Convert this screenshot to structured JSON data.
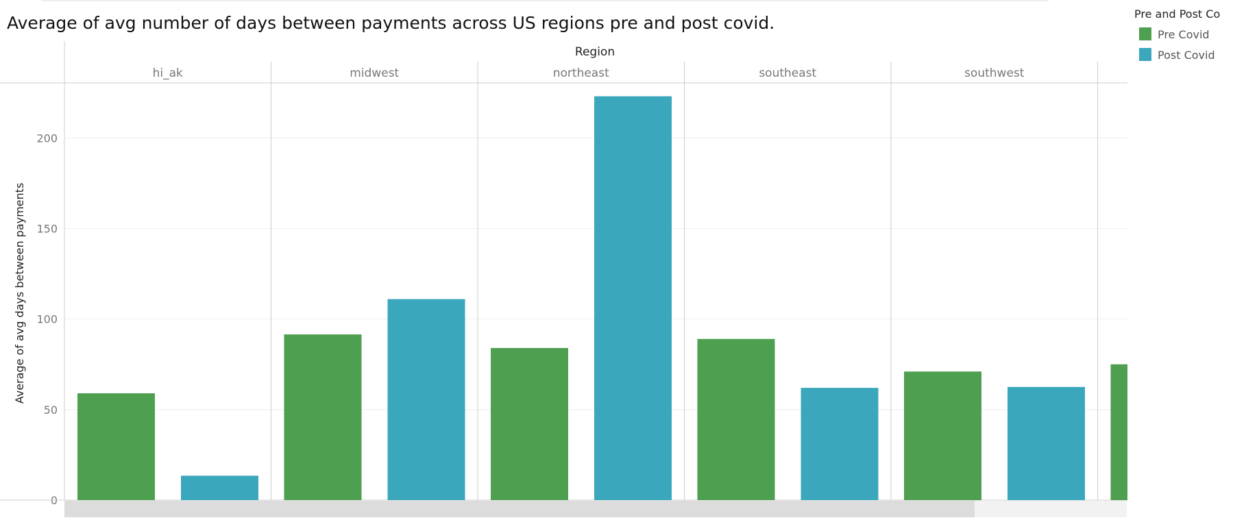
{
  "title": "Average of avg number of days between payments across US regions pre and post covid.",
  "legend": {
    "title": "Pre and Post Co",
    "items": [
      {
        "label": "Pre Covid",
        "color": "#4e9f50"
      },
      {
        "label": "Post Covid",
        "color": "#3ba7bc"
      }
    ]
  },
  "chart_data": {
    "type": "bar",
    "column_header": "Region",
    "ylabel": "Average of avg days between payments",
    "ylim": [
      0,
      230
    ],
    "yticks": [
      0,
      50,
      100,
      150,
      200
    ],
    "grid": true,
    "legend_position": "top-right",
    "categories": [
      "hi_ak",
      "midwest",
      "northeast",
      "southeast",
      "southwest",
      ""
    ],
    "series": [
      {
        "name": "Pre Covid",
        "color": "#4e9f50",
        "values": [
          59,
          91.5,
          84,
          89,
          71,
          75
        ]
      },
      {
        "name": "Post Covid",
        "color": "#3ba7bc",
        "values": [
          13.5,
          111,
          223,
          62,
          62.5,
          null
        ]
      }
    ]
  }
}
